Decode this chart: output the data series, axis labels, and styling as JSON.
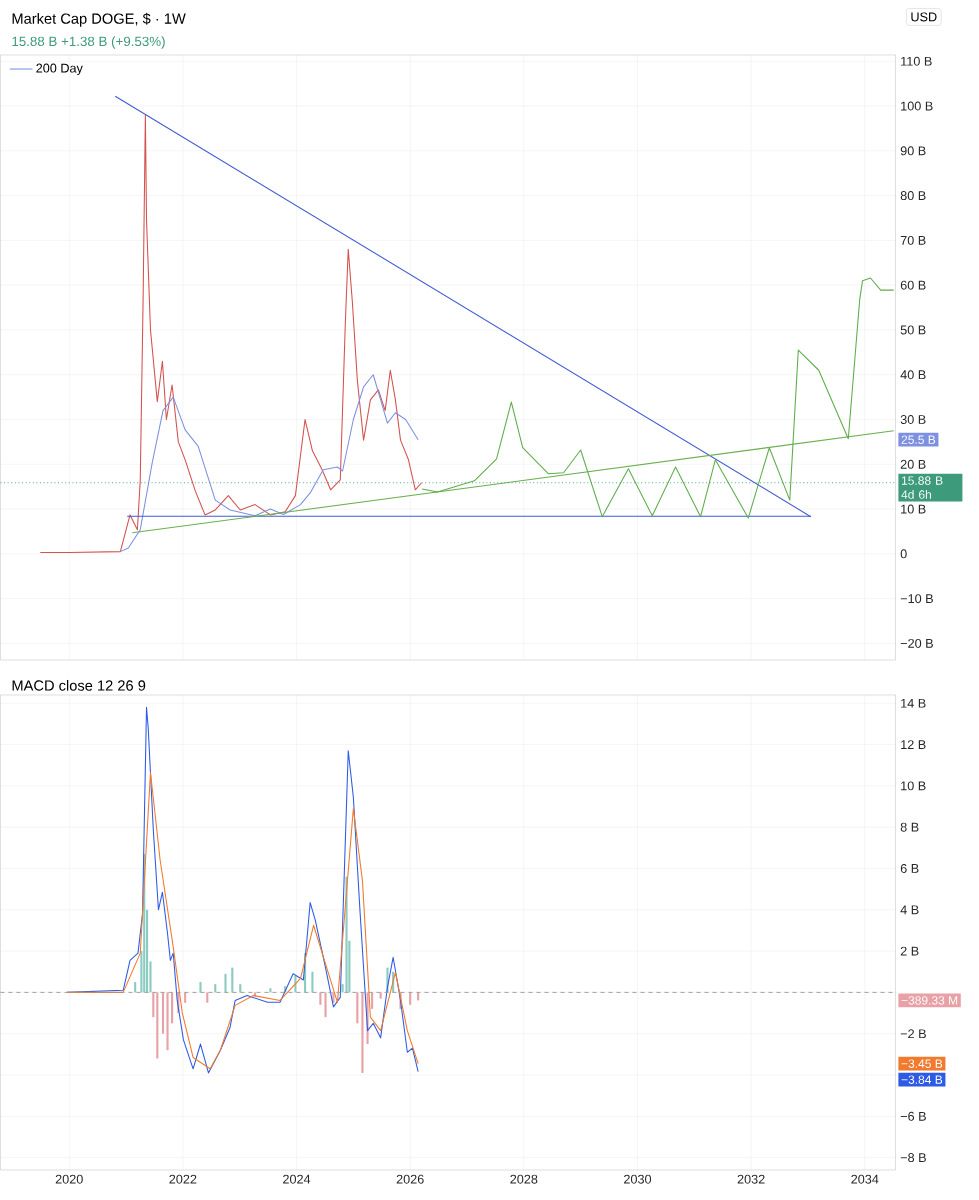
{
  "chart_data": [
    {
      "type": "line",
      "title": "Market Cap DOGE, $ · 1W",
      "subtitle": "15.88 B  +1.38 B (+9.53%)",
      "xlim": [
        2018.79,
        2034.54
      ],
      "xticks": [
        2020,
        2022,
        2024,
        2026,
        2028,
        2030,
        2032,
        2034
      ],
      "ylim": [
        -23.7,
        111.4
      ],
      "yticks": [
        {
          "value": -20,
          "label": "−20 B"
        },
        {
          "value": -10,
          "label": "−10 B"
        },
        0,
        {
          "value": 10,
          "label": "10 B"
        },
        {
          "value": 20,
          "label": "20 B"
        },
        {
          "value": 30,
          "label": "30 B"
        },
        {
          "value": 40,
          "label": "40 B"
        },
        {
          "value": 50,
          "label": "50 B"
        },
        {
          "value": 60,
          "label": "60 B"
        },
        {
          "value": 70,
          "label": "70 B"
        },
        {
          "value": 80,
          "label": "80 B"
        },
        {
          "value": 90,
          "label": "90 B"
        },
        {
          "value": 100,
          "label": "100 B"
        },
        {
          "value": 110,
          "label": "110 B"
        }
      ],
      "tick_labels": "y",
      "grid": true,
      "legend": "top left",
      "series": [
        {
          "color": "#d4524f",
          "x": [
            2019.49,
            2020.0,
            2020.9,
            2021.07,
            2021.2,
            2021.25,
            2021.3,
            2021.34,
            2021.36,
            2021.43,
            2021.55,
            2021.64,
            2021.71,
            2021.81,
            2021.92,
            2022.04,
            2022.22,
            2022.39,
            2022.57,
            2022.8,
            2023.01,
            2023.27,
            2023.54,
            2023.8,
            2023.98,
            2024.15,
            2024.28,
            2024.45,
            2024.6,
            2024.77,
            2024.86,
            2024.91,
            2024.98,
            2025.07,
            2025.18,
            2025.3,
            2025.44,
            2025.56,
            2025.65,
            2025.74,
            2025.83,
            2025.97,
            2026.09,
            2026.2
          ],
          "values": [
            0.3,
            0.3,
            0.5,
            8.7,
            5.4,
            16.5,
            56.7,
            98,
            74.6,
            50,
            34,
            43,
            30,
            37.7,
            25,
            21,
            14,
            8.7,
            9.8,
            13,
            9.8,
            11,
            8.7,
            9.4,
            13,
            30,
            23,
            18.8,
            14.3,
            16.5,
            52,
            68,
            56.7,
            38.8,
            25.4,
            34.4,
            36.6,
            32,
            41,
            34.4,
            25.4,
            21,
            14.3,
            15.88
          ]
        },
        {
          "name": "200 Day",
          "color": "#7d91e0",
          "x": [
            2020.9,
            2021.04,
            2021.25,
            2021.46,
            2021.65,
            2021.83,
            2022.04,
            2022.27,
            2022.57,
            2022.83,
            2023.27,
            2023.54,
            2023.77,
            2024.07,
            2024.24,
            2024.47,
            2024.72,
            2024.81,
            2025.0,
            2025.18,
            2025.35,
            2025.6,
            2025.74,
            2025.92,
            2026.14
          ],
          "values": [
            0.5,
            1.3,
            5.4,
            20.3,
            32,
            35,
            27.7,
            24,
            12,
            9.8,
            8.5,
            10,
            8.8,
            11,
            13.6,
            18.8,
            19.4,
            18.5,
            30,
            37.3,
            40,
            29.2,
            31.5,
            30,
            25.5
          ]
        },
        {
          "color": "#3f5bd5",
          "x": [
            2020.81,
            2033.05
          ],
          "values": [
            102.2,
            8.3
          ]
        },
        {
          "color": "#3f5bd5",
          "x": [
            2021.02,
            2033.05
          ],
          "values": [
            8.4,
            8.4
          ]
        },
        {
          "color": "#6ab04c",
          "x": [
            2021.11,
            2034.51
          ],
          "values": [
            4.7,
            27.5
          ]
        },
        {
          "color": "#5eae4a",
          "x": [
            2026.21,
            2026.48,
            2027.13,
            2027.52,
            2027.78,
            2027.98,
            2028.43,
            2028.7,
            2029.0,
            2029.38,
            2029.84,
            2030.26,
            2030.67,
            2031.11,
            2031.37,
            2031.95,
            2032.32,
            2032.68,
            2032.83,
            2033.19,
            2033.71,
            2033.91,
            2033.96,
            2034.1,
            2034.28,
            2034.51
          ],
          "values": [
            14.5,
            13.8,
            16.3,
            21.2,
            33.9,
            23.7,
            17.9,
            18.1,
            23.2,
            8.3,
            19,
            8.5,
            19.4,
            8.3,
            21,
            8,
            23.7,
            12,
            45.5,
            41,
            25.7,
            56.7,
            61,
            61.6,
            58.9,
            58.9
          ]
        }
      ],
      "ref_lines": [
        {
          "axis": "y",
          "value": 15.88,
          "label": "15.88 B 4d 6h",
          "color": "#3d9a7a",
          "line_style": "dotted"
        }
      ],
      "annotations": [
        "25.5 B",
        "USD"
      ]
    },
    {
      "type": "line",
      "title": "MACD close 12 26 9",
      "xlim": [
        2018.79,
        2034.54
      ],
      "xticks": [
        2020,
        2022,
        2024,
        2026,
        2028,
        2030,
        2032,
        2034
      ],
      "ylim": [
        -8.6,
        14.4
      ],
      "yticks": [
        {
          "value": -8,
          "label": "−8 B"
        },
        {
          "value": -6,
          "label": "−6 B"
        },
        {
          "value": -4,
          "label": null
        },
        {
          "value": -2,
          "label": "−2 B"
        },
        {
          "value": 0,
          "label": null
        },
        {
          "value": 2,
          "label": "2 B"
        },
        {
          "value": 4,
          "label": "4 B"
        },
        {
          "value": 6,
          "label": "6 B"
        },
        {
          "value": 8,
          "label": "8 B"
        },
        {
          "value": 10,
          "label": "10 B"
        },
        {
          "value": 12,
          "label": "12 B"
        },
        {
          "value": 14,
          "label": "14 B"
        }
      ],
      "grid": true,
      "series": [
        {
          "type": "bar",
          "x": [
            2021.16,
            2021.27,
            2021.32,
            2021.37,
            2021.43,
            2021.48,
            2021.55,
            2021.65,
            2021.73,
            2021.81,
            2021.92,
            2022.04,
            2022.31,
            2022.43,
            2022.57,
            2022.75,
            2022.87,
            2023.01,
            2023.27,
            2023.54,
            2023.8,
            2023.98,
            2024.15,
            2024.28,
            2024.42,
            2024.51,
            2024.65,
            2024.81,
            2024.88,
            2024.93,
            2025.07,
            2025.16,
            2025.25,
            2025.33,
            2025.48,
            2025.6,
            2025.7,
            2025.83,
            2026.0,
            2026.14
          ],
          "values": [
            0.5,
            2.0,
            6.7,
            4.0,
            1.5,
            -1.2,
            -3.2,
            -2.0,
            -2.8,
            -1.5,
            -1.0,
            -0.5,
            0.5,
            -0.5,
            0.4,
            0.9,
            1.2,
            0.4,
            -0.2,
            0.2,
            0.3,
            0.8,
            1.9,
            1.0,
            -0.6,
            -1.2,
            -0.5,
            0.4,
            5.6,
            2.5,
            -1.5,
            -3.9,
            -2.5,
            -0.8,
            -0.3,
            1.2,
            1.0,
            -0.8,
            -0.6,
            -0.389
          ],
          "colors": [
            "#8ccbc1",
            "#8ccbc1",
            "#8ccbc1",
            "#8ccbc1",
            "#8ccbc1",
            "#e8a1a6",
            "#e8a1a6",
            "#e8a1a6",
            "#e8a1a6",
            "#e8a1a6",
            "#e8a1a6",
            "#e8a1a6",
            "#8ccbc1",
            "#e8a1a6",
            "#8ccbc1",
            "#8ccbc1",
            "#8ccbc1",
            "#8ccbc1",
            "#e8a1a6",
            "#8ccbc1",
            "#8ccbc1",
            "#8ccbc1",
            "#8ccbc1",
            "#8ccbc1",
            "#e8a1a6",
            "#e8a1a6",
            "#e8a1a6",
            "#8ccbc1",
            "#8ccbc1",
            "#8ccbc1",
            "#e8a1a6",
            "#e8a1a6",
            "#e8a1a6",
            "#e8a1a6",
            "#e8a1a6",
            "#8ccbc1",
            "#8ccbc1",
            "#e8a1a6",
            "#e8a1a6",
            "#e8a1a6"
          ]
        },
        {
          "color": "#2e5be6",
          "x": [
            2019.96,
            2020.95,
            2021.07,
            2021.21,
            2021.29,
            2021.36,
            2021.39,
            2021.48,
            2021.57,
            2021.64,
            2021.73,
            2021.78,
            2021.83,
            2021.9,
            2022.01,
            2022.18,
            2022.31,
            2022.45,
            2022.66,
            2022.83,
            2022.92,
            2023.13,
            2023.49,
            2023.71,
            2023.94,
            2024.12,
            2024.24,
            2024.33,
            2024.51,
            2024.65,
            2024.77,
            2024.91,
            2025.0,
            2025.12,
            2025.25,
            2025.35,
            2025.48,
            2025.6,
            2025.7,
            2025.83,
            2025.95,
            2026.04,
            2026.14
          ],
          "values": [
            0,
            0.1,
            1.55,
            1.9,
            3.8,
            13.8,
            12.8,
            7.85,
            4.0,
            4.85,
            2.85,
            1.55,
            1.9,
            -0.39,
            -2.3,
            -3.7,
            -2.5,
            -3.9,
            -2.8,
            -1.7,
            -0.39,
            -0.15,
            -0.48,
            -0.48,
            0.9,
            0.6,
            4.35,
            3.5,
            1.2,
            -0.7,
            -0.24,
            11.7,
            9.45,
            3.8,
            -1.85,
            -1.5,
            -2.2,
            0.24,
            1.7,
            -0.39,
            -2.9,
            -2.7,
            -3.84
          ]
        },
        {
          "color": "#f07a2e",
          "x": [
            2019.96,
            2020.95,
            2021.25,
            2021.43,
            2021.6,
            2021.83,
            2021.99,
            2022.18,
            2022.48,
            2022.66,
            2022.92,
            2023.24,
            2023.71,
            2024.07,
            2024.3,
            2024.6,
            2024.72,
            2025.0,
            2025.16,
            2025.3,
            2025.48,
            2025.74,
            2025.95,
            2026.14
          ],
          "values": [
            0,
            0,
            1.9,
            10.65,
            6.4,
            2.2,
            -1.0,
            -3.15,
            -3.7,
            -2.8,
            -0.63,
            -0.15,
            -0.39,
            0.68,
            3.25,
            0.58,
            -0.48,
            8.9,
            5.4,
            -1.2,
            -1.85,
            0.97,
            -1.85,
            -3.45
          ]
        }
      ],
      "ref_lines": [
        {
          "axis": "y",
          "value": 0,
          "color": "#9a9a9a",
          "line_style": "dashed"
        }
      ],
      "annotations": [
        "−389.33 M",
        "−3.45 B",
        "−3.84 B"
      ]
    }
  ]
}
